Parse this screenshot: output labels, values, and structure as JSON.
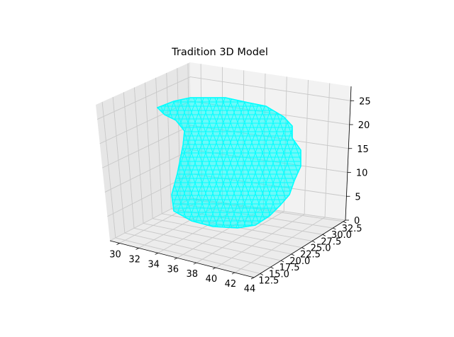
{
  "chart_data": {
    "type": "3d-surface-mesh",
    "title": "Tradition 3D Model",
    "mesh_color": "#00ffff",
    "x_ticks": [
      "30",
      "32",
      "34",
      "36",
      "38",
      "40",
      "42",
      "44"
    ],
    "y_ticks": [
      "12.5",
      "15.0",
      "17.5",
      "20.0",
      "22.5",
      "25.0",
      "27.5",
      "30.0",
      "32.5"
    ],
    "z_ticks": [
      "0",
      "5",
      "10",
      "15",
      "20",
      "25"
    ],
    "xlim": [
      29,
      44
    ],
    "ylim": [
      11,
      33
    ],
    "zlim": [
      0,
      28
    ],
    "grid": true
  }
}
